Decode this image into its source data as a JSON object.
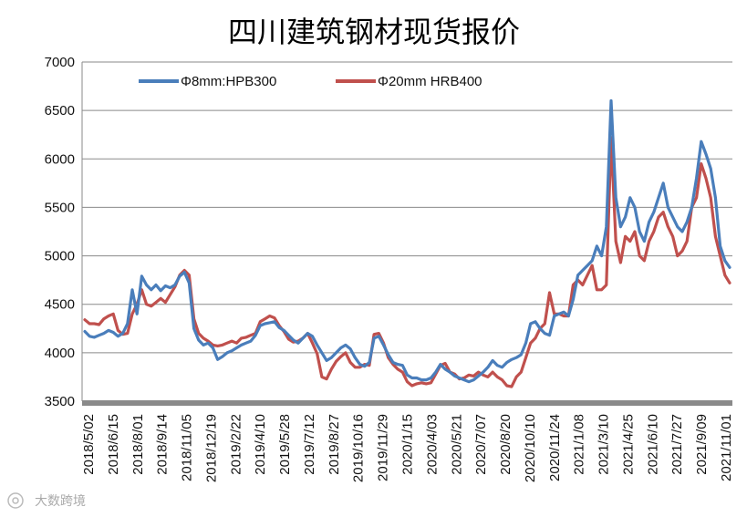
{
  "chart_data": {
    "type": "line",
    "title": "四川建筑钢材现货报价",
    "xlabel": "",
    "ylabel": "",
    "ylim": [
      3500,
      7000
    ],
    "yticks": [
      3500,
      4000,
      4500,
      5000,
      5500,
      6000,
      6500,
      7000
    ],
    "grid": "horizontal",
    "legend_position": "top-left",
    "x_tick_labels": [
      "2018/5/02",
      "2018/6/15",
      "2018/8/01",
      "2018/9/14",
      "2018/11/05",
      "2018/12/19",
      "2019/2/22",
      "2019/4/10",
      "2019/5/28",
      "2019/7/12",
      "2019/8/27",
      "2019/10/16",
      "2019/11/29",
      "2020/1/15",
      "2020/4/03",
      "2020/5/21",
      "2020/7/07",
      "2020/8/20",
      "2020/10/10",
      "2020/11/24",
      "2021/1/08",
      "2021/3/10",
      "2021/4/25",
      "2021/6/10",
      "2021/7/27",
      "2021/9/09",
      "2021/11/01"
    ],
    "series": [
      {
        "name": "Φ8mm:HPB300",
        "color": "#4a7ebb",
        "values": [
          4220,
          4170,
          4160,
          4180,
          4200,
          4230,
          4210,
          4170,
          4200,
          4300,
          4650,
          4400,
          4790,
          4700,
          4650,
          4700,
          4640,
          4690,
          4670,
          4700,
          4790,
          4830,
          4720,
          4250,
          4130,
          4080,
          4100,
          4050,
          3930,
          3960,
          4000,
          4020,
          4050,
          4080,
          4100,
          4120,
          4180,
          4280,
          4300,
          4310,
          4320,
          4260,
          4230,
          4180,
          4130,
          4100,
          4150,
          4200,
          4170,
          4080,
          4000,
          3920,
          3950,
          4000,
          4050,
          4080,
          4040,
          3950,
          3880,
          3860,
          3900,
          4150,
          4170,
          4080,
          3980,
          3900,
          3880,
          3870,
          3770,
          3740,
          3740,
          3720,
          3720,
          3740,
          3800,
          3880,
          3830,
          3800,
          3760,
          3740,
          3720,
          3700,
          3720,
          3760,
          3800,
          3850,
          3920,
          3870,
          3850,
          3900,
          3930,
          3950,
          3980,
          4100,
          4300,
          4320,
          4250,
          4200,
          4180,
          4380,
          4400,
          4420,
          4380,
          4550,
          4800,
          4850,
          4900,
          4950,
          5100,
          5000,
          5300,
          6600,
          5600,
          5300,
          5400,
          5600,
          5500,
          5250,
          5150,
          5350,
          5450,
          5600,
          5750,
          5500,
          5400,
          5300,
          5250,
          5350,
          5500,
          5800,
          6180,
          6050,
          5900,
          5600,
          5100,
          4950,
          4880
        ]
      },
      {
        "name": "Φ20mm HRB400",
        "color": "#c0504d",
        "values": [
          4340,
          4300,
          4300,
          4290,
          4350,
          4380,
          4400,
          4230,
          4190,
          4200,
          4400,
          4500,
          4650,
          4500,
          4480,
          4520,
          4560,
          4520,
          4600,
          4680,
          4800,
          4850,
          4800,
          4350,
          4200,
          4150,
          4120,
          4080,
          4070,
          4080,
          4100,
          4120,
          4100,
          4150,
          4160,
          4180,
          4200,
          4320,
          4350,
          4380,
          4360,
          4280,
          4220,
          4140,
          4110,
          4120,
          4150,
          4200,
          4100,
          3990,
          3750,
          3730,
          3830,
          3910,
          3960,
          4000,
          3900,
          3850,
          3850,
          3880,
          3870,
          4190,
          4200,
          4100,
          3950,
          3880,
          3830,
          3800,
          3700,
          3660,
          3680,
          3690,
          3680,
          3690,
          3780,
          3870,
          3890,
          3800,
          3780,
          3730,
          3740,
          3770,
          3760,
          3800,
          3770,
          3750,
          3800,
          3750,
          3720,
          3660,
          3650,
          3750,
          3800,
          3950,
          4100,
          4150,
          4250,
          4300,
          4620,
          4400,
          4400,
          4380,
          4380,
          4700,
          4750,
          4700,
          4800,
          4900,
          4650,
          4650,
          4700,
          6220,
          5150,
          4930,
          5200,
          5150,
          5250,
          5000,
          4950,
          5150,
          5250,
          5400,
          5450,
          5300,
          5200,
          5000,
          5050,
          5150,
          5500,
          5600,
          5950,
          5800,
          5600,
          5200,
          5000,
          4800,
          4720
        ]
      }
    ]
  },
  "watermark": {
    "icon": "camera-icon",
    "text": "大数跨境"
  }
}
